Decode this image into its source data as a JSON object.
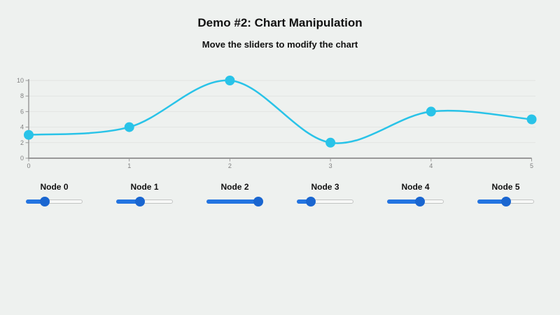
{
  "header": {
    "title": "Demo #2: Chart Manipulation",
    "subtitle": "Move the sliders to modify the chart"
  },
  "chart_data": {
    "type": "line",
    "x": [
      0,
      1,
      2,
      3,
      4,
      5
    ],
    "values": [
      3,
      4,
      10,
      2,
      6,
      5
    ],
    "x_tick_labels": [
      "0",
      "1",
      "2",
      "3",
      "4",
      "5"
    ],
    "y_tick_labels": [
      "0",
      "2",
      "4",
      "6",
      "8",
      "10"
    ],
    "y_ticks": [
      0,
      2,
      4,
      6,
      8,
      10
    ],
    "xlim": [
      0,
      5
    ],
    "ylim": [
      0,
      10
    ],
    "grid": true,
    "legend": "none",
    "smooth": true,
    "title": "",
    "xlabel": "",
    "ylabel": "",
    "line_color": "#29c3e8",
    "marker_color": "#29c3e8",
    "axis_color": "#999999",
    "tick_label_color": "#808080",
    "gridline_color": "#e2e4e2"
  },
  "sliders": [
    {
      "label": "Node 0",
      "value": 3,
      "min": 0,
      "max": 10
    },
    {
      "label": "Node 1",
      "value": 4,
      "min": 0,
      "max": 10
    },
    {
      "label": "Node 2",
      "value": 10,
      "min": 0,
      "max": 10
    },
    {
      "label": "Node 3",
      "value": 2,
      "min": 0,
      "max": 10
    },
    {
      "label": "Node 4",
      "value": 6,
      "min": 0,
      "max": 10
    },
    {
      "label": "Node 5",
      "value": 5,
      "min": 0,
      "max": 10
    }
  ],
  "colors": {
    "background": "#eef1ef",
    "slider_fill": "#2374e1",
    "slider_thumb": "#1a66d0",
    "slider_track": "#f7f8f7",
    "slider_track_border": "#c3c5c4"
  }
}
